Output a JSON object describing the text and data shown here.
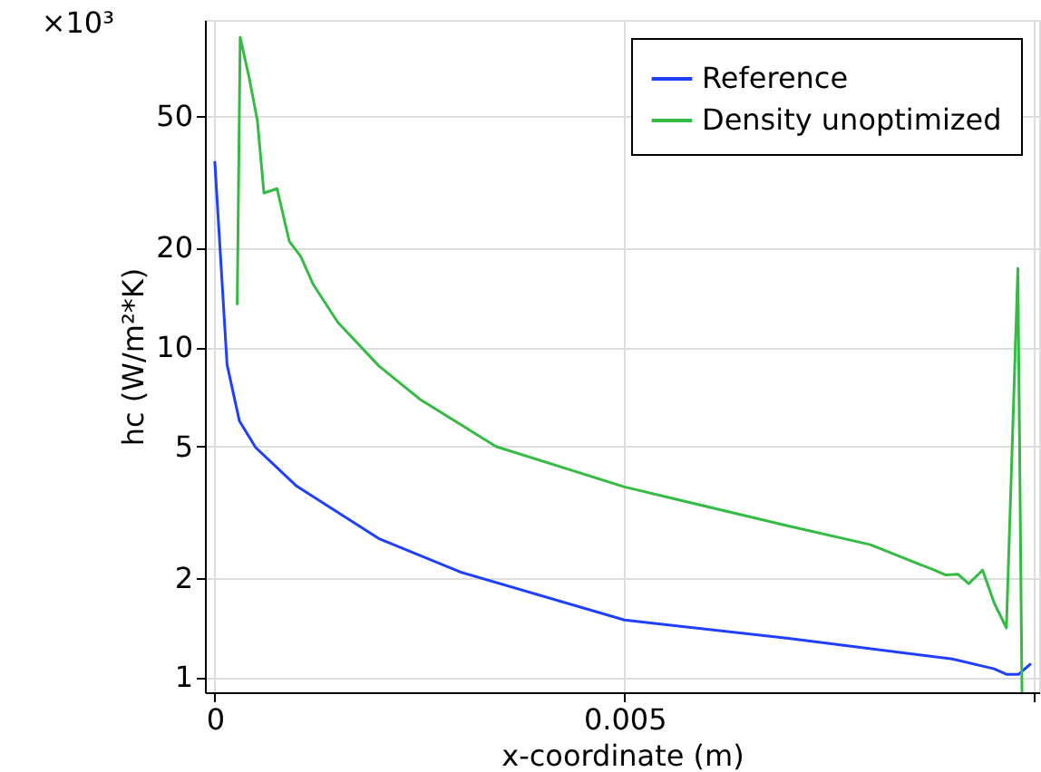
{
  "chart_data": {
    "type": "line",
    "xlabel": "x-coordinate (m)",
    "ylabel": "hc (W/m²*K)",
    "annotations": [
      "×10³"
    ],
    "log": "y",
    "grid": true,
    "legend": "top right",
    "line_style": "solid",
    "marker": "none",
    "xlim": [
      -0.00012,
      0.01006
    ],
    "ylim": [
      0.9,
      98
    ],
    "xticks": [
      0,
      0.005,
      {
        "value": 0.01,
        "label": null
      }
    ],
    "yticks": [
      1,
      2,
      5,
      10,
      20,
      50
    ],
    "series": [
      {
        "name": "Reference",
        "color": "#1f3fff",
        "x": [
          0,
          0.00015,
          0.0003,
          0.0005,
          0.001,
          0.002,
          0.003,
          0.005,
          0.007,
          0.009,
          0.00951,
          0.00966,
          0.00981,
          0.00996
        ],
        "values": [
          36.6,
          8.85,
          5.98,
          4.96,
          3.79,
          2.63,
          2.08,
          1.49,
          1.31,
          1.135,
          1.06,
          1.02,
          1.02,
          1.1
        ]
      },
      {
        "name": "Density unoptimized",
        "color": "#33bb44",
        "x": [
          0.000274,
          0.00031,
          0.00042,
          0.00052,
          0.0006,
          0.00076,
          0.00091,
          0.00105,
          0.0012,
          0.0015,
          0.002,
          0.0025,
          0.00343,
          0.005,
          0.007,
          0.008,
          0.00878,
          0.00892,
          0.00907,
          0.0092,
          0.00937,
          0.00951,
          0.00966,
          0.0098,
          0.00985
        ],
        "values": [
          13.4,
          86.8,
          65.4,
          48.6,
          29.3,
          30.2,
          20.9,
          18.8,
          15.5,
          11.9,
          8.78,
          6.96,
          5,
          3.77,
          2.87,
          2.52,
          2.11,
          2.04,
          2.05,
          1.92,
          2.11,
          1.68,
          1.41,
          17.3,
          0.9
        ]
      }
    ]
  }
}
